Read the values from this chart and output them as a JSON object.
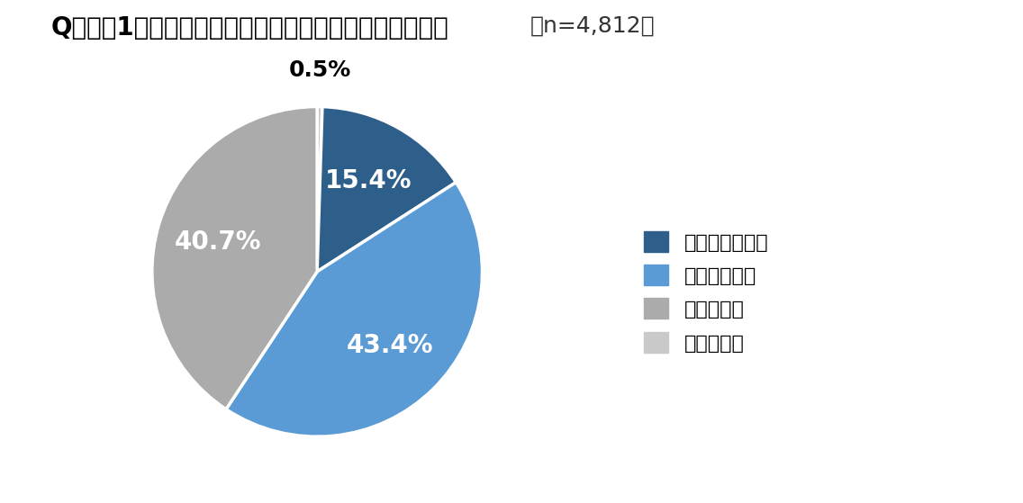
{
  "title_main": "Q：この1年で「防災への意識」に変化はありましたか？",
  "title_sub": "（n=4,812）",
  "slices": [
    15.4,
    43.4,
    40.7,
    0.5
  ],
  "labels": [
    "とても高まった",
    "やや高まった",
    "変化はない",
    "低くなった"
  ],
  "colors": [
    "#2E5F8A",
    "#5B9BD5",
    "#ABABAB",
    "#C9C9C9"
  ],
  "pct_labels": [
    "15.4%",
    "43.4%",
    "40.7%",
    "0.5%"
  ],
  "background_color": "#FFFFFF",
  "title_fontsize": 20,
  "legend_fontsize": 16,
  "pct_fontsize": 20
}
